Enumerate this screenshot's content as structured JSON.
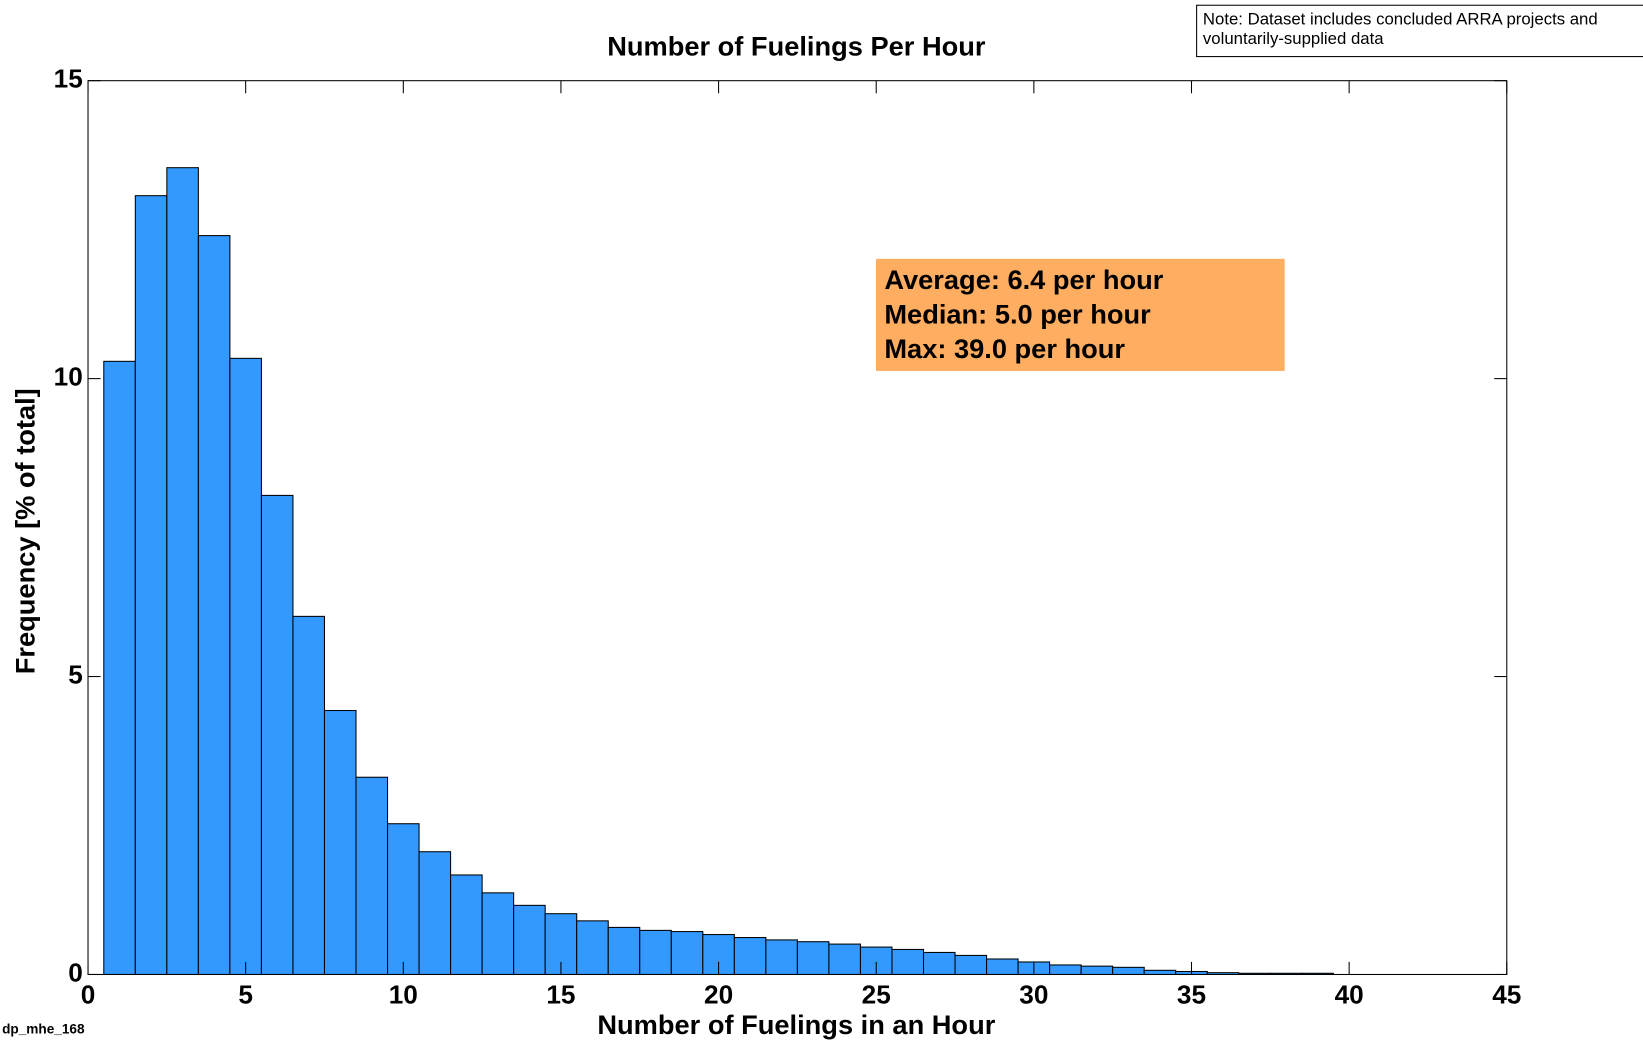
{
  "chart_data": {
    "type": "histogram",
    "title": "Number of Fuelings Per Hour",
    "xlabel": "Number of Fuelings in an Hour",
    "ylabel": "Frequency [% of total]",
    "bins": [
      0.5,
      1.5,
      2.5,
      3.5,
      4.5,
      5.5,
      6.5,
      7.5,
      8.5,
      9.5,
      10.5,
      11.5,
      12.5,
      13.5,
      14.5,
      15.5,
      16.5,
      17.5,
      18.5,
      19.5,
      20.5,
      21.5,
      22.5,
      23.5,
      24.5,
      25.5,
      26.5,
      27.5,
      28.5,
      29.5,
      30.5,
      31.5,
      32.5,
      33.5,
      34.5,
      35.5,
      36.5,
      37.5,
      38.5,
      39.5
    ],
    "values": [
      10.29,
      13.07,
      13.54,
      12.4,
      10.34,
      8.04,
      6.01,
      4.43,
      3.31,
      2.53,
      2.06,
      1.67,
      1.37,
      1.16,
      1.02,
      0.9,
      0.79,
      0.74,
      0.72,
      0.67,
      0.62,
      0.58,
      0.55,
      0.51,
      0.46,
      0.42,
      0.37,
      0.32,
      0.26,
      0.21,
      0.16,
      0.14,
      0.12,
      0.07,
      0.05,
      0.03,
      0.02,
      0.02,
      0.02
    ],
    "color": "#3399ff",
    "xlim": [
      0,
      45
    ],
    "ylim": [
      0,
      15
    ],
    "xticks": [
      0,
      5,
      10,
      15,
      20,
      25,
      30,
      35,
      40,
      45
    ],
    "yticks": [
      0,
      5,
      10,
      15
    ],
    "annotation": [
      "Average: 6.4 per hour",
      "Median: 5.0 per hour",
      "Max: 39.0 per hour"
    ],
    "annotation_color": "#ffad60",
    "note": [
      "Note: Dataset includes concluded ARRA projects and",
      "voluntarily-supplied data"
    ],
    "footnote": "dp_mhe_168"
  }
}
